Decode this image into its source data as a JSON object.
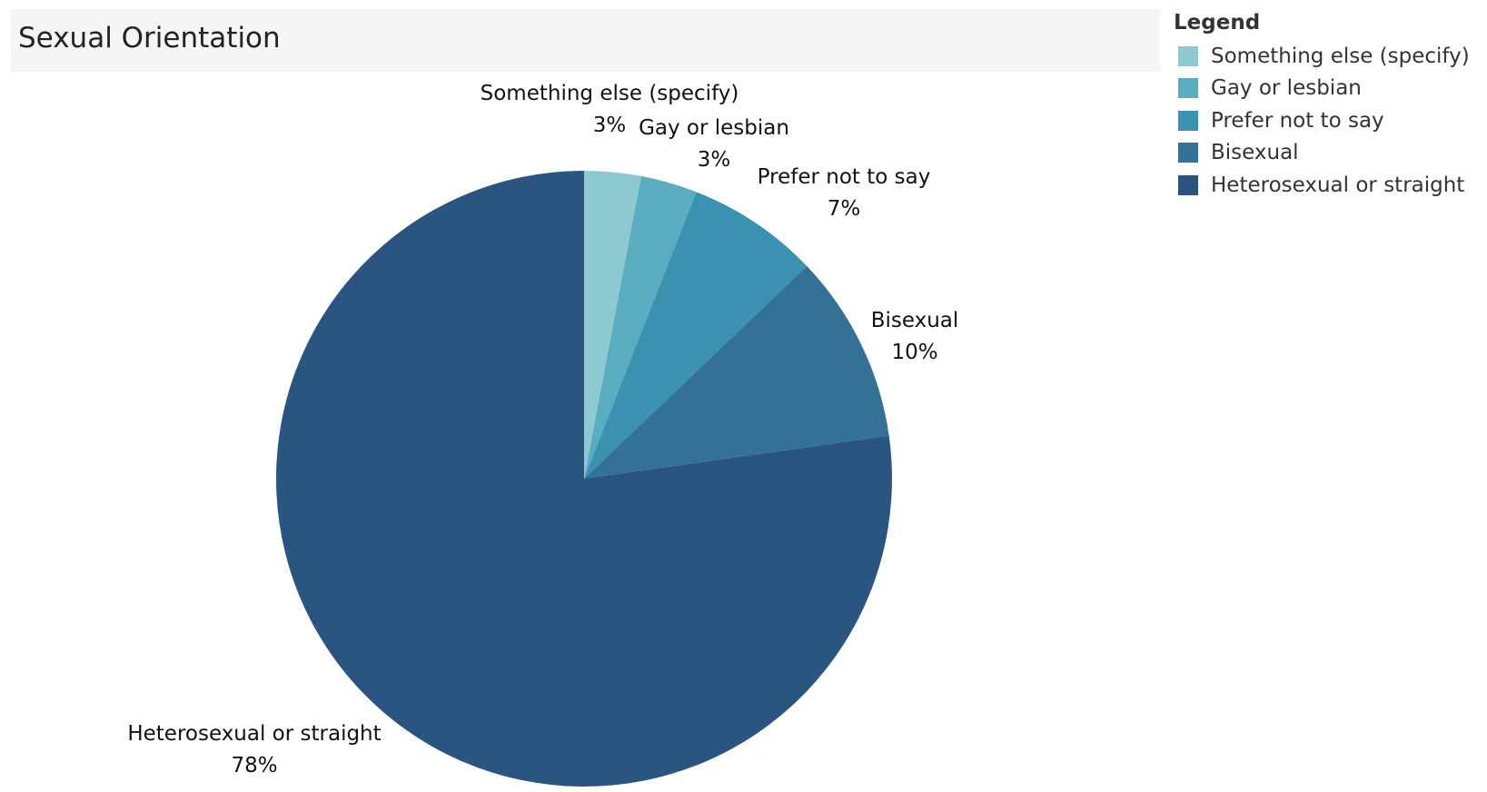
{
  "chart_data": {
    "type": "pie",
    "title": "Sexual Orientation",
    "legend_title": "Legend",
    "legend_position": "top-right",
    "slices": [
      {
        "name": "Something else (specify)",
        "value": 3,
        "label": "3%",
        "color": "#8ec8d0"
      },
      {
        "name": "Gay or lesbian",
        "value": 3,
        "label": "3%",
        "color": "#5aadbf"
      },
      {
        "name": "Prefer not to say",
        "value": 7,
        "label": "7%",
        "color": "#3b91b0"
      },
      {
        "name": "Bisexual",
        "value": 10,
        "label": "10%",
        "color": "#337296"
      },
      {
        "name": "Heterosexual or straight",
        "value": 78,
        "label": "78%",
        "color": "#2a5581"
      }
    ]
  }
}
